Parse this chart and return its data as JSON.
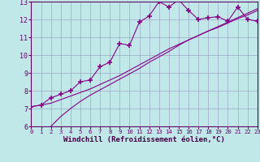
{
  "background_color": "#c0e8e8",
  "grid_color": "#a0a8c8",
  "line_color": "#880088",
  "marker": "+",
  "marker_size": 4,
  "xlim": [
    0,
    23
  ],
  "ylim": [
    6,
    13
  ],
  "xlabel": "Windchill (Refroidissement éolien,°C)",
  "xlabel_fontsize": 6.5,
  "xticks": [
    0,
    1,
    2,
    3,
    4,
    5,
    6,
    7,
    8,
    9,
    10,
    11,
    12,
    13,
    14,
    15,
    16,
    17,
    18,
    19,
    20,
    21,
    22,
    23
  ],
  "yticks": [
    6,
    7,
    8,
    9,
    10,
    11,
    12,
    13
  ],
  "tick_fontsize": 6.0,
  "line1_x": [
    0,
    1,
    2,
    3,
    4,
    5,
    6,
    7,
    8,
    9,
    10,
    11,
    12,
    13,
    14,
    15,
    16,
    17,
    18,
    19,
    20,
    21,
    22,
    23
  ],
  "line1_y": [
    7.1,
    7.2,
    7.6,
    7.8,
    8.0,
    8.5,
    8.6,
    9.35,
    9.6,
    10.65,
    10.55,
    11.85,
    12.2,
    13.0,
    12.7,
    13.1,
    12.5,
    12.0,
    12.1,
    12.15,
    11.9,
    12.7,
    12.0,
    11.9
  ],
  "line2_x": [
    2,
    3,
    4,
    5,
    6,
    7,
    8,
    9,
    10,
    11,
    12,
    13,
    14,
    15,
    16,
    17,
    18,
    19,
    20,
    21,
    22,
    23
  ],
  "line2_y": [
    6.0,
    6.55,
    7.0,
    7.4,
    7.75,
    8.05,
    8.35,
    8.65,
    8.95,
    9.25,
    9.6,
    9.9,
    10.2,
    10.55,
    10.85,
    11.1,
    11.35,
    11.6,
    11.85,
    12.1,
    12.35,
    12.6
  ],
  "line3_x": [
    0,
    1,
    2,
    3,
    4,
    5,
    6,
    7,
    8,
    9,
    10,
    11,
    12,
    13,
    14,
    15,
    16,
    17,
    18,
    19,
    20,
    21,
    22,
    23
  ],
  "line3_y": [
    7.1,
    7.2,
    7.3,
    7.5,
    7.7,
    7.9,
    8.1,
    8.35,
    8.6,
    8.85,
    9.15,
    9.45,
    9.75,
    10.05,
    10.35,
    10.6,
    10.85,
    11.1,
    11.35,
    11.55,
    11.8,
    12.05,
    12.25,
    12.5
  ]
}
